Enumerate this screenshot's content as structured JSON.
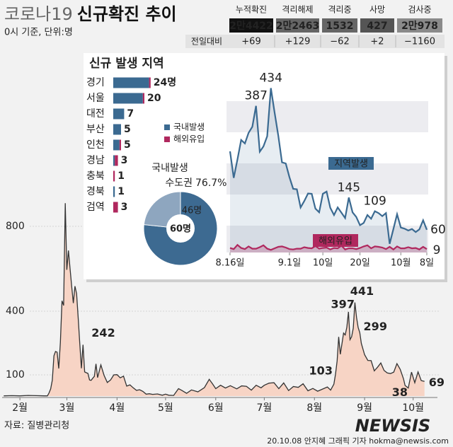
{
  "header": {
    "title_gray": "코로나19",
    "title": "신규확진 추이",
    "subtitle": "0시 기준, 단위:명"
  },
  "stats": {
    "columns": [
      "누적확진",
      "격리해제",
      "격리중",
      "사망",
      "검사중"
    ],
    "totals": [
      "2만4422",
      "2만2463",
      "1532",
      "427",
      "2만978"
    ],
    "change_label": "전일대비",
    "changes": [
      "+69",
      "+129",
      "−62",
      "+2",
      "−1160"
    ]
  },
  "chart_data": [
    {
      "type": "area",
      "x": [
        -10,
        -5,
        0,
        5,
        10,
        15,
        17,
        18,
        19,
        20,
        21,
        22,
        23,
        24,
        25,
        26,
        27,
        28,
        29,
        30,
        31,
        32,
        33,
        34,
        35,
        36,
        37,
        38,
        39,
        40,
        41,
        42,
        43,
        44,
        45,
        46,
        47,
        48,
        50,
        52,
        54,
        56,
        58,
        60,
        62,
        64,
        66,
        68,
        70,
        72,
        74,
        76,
        78,
        80,
        82,
        85,
        88,
        90,
        92,
        95,
        98,
        100,
        103,
        106,
        110,
        114,
        117,
        119,
        121,
        124,
        127,
        130,
        134,
        137,
        140,
        143,
        146,
        149,
        151,
        154,
        157,
        160,
        163,
        166,
        169,
        172,
        175,
        178,
        181,
        184,
        187,
        190,
        192,
        194,
        195,
        196,
        197,
        198,
        199,
        200,
        201,
        202,
        203,
        204,
        205,
        206,
        207,
        208,
        209,
        210,
        211,
        213,
        215,
        217,
        219,
        221,
        223,
        225,
        227,
        229,
        231,
        233,
        235,
        237,
        238,
        240,
        242,
        244,
        246,
        248,
        250
      ],
      "series": [
        {
          "color": "#333333",
          "fill": "#f7d4c5",
          "values": [
            1,
            2,
            1,
            3,
            2,
            1,
            1,
            15,
            34,
            75,
            190,
            210,
            207,
            130,
            253,
            449,
            427,
            909,
            595,
            686,
            600,
            516,
            438,
            518,
            483,
            367,
            248,
            131,
            242,
            114,
            110,
            107,
            76,
            74,
            84,
            93,
            152,
            87,
            147,
            98,
            64,
            76,
            100,
            101,
            86,
            94,
            47,
            53,
            39,
            27,
            30,
            22,
            9,
            11,
            8,
            10,
            4,
            9,
            4,
            3,
            35,
            27,
            13,
            29,
            20,
            40,
            79,
            58,
            35,
            51,
            38,
            49,
            34,
            48,
            46,
            28,
            51,
            39,
            51,
            61,
            63,
            35,
            62,
            26,
            45,
            41,
            58,
            25,
            36,
            23,
            33,
            43,
            28,
            56,
            103,
            166,
            279,
            197,
            246,
            297,
            288,
            324,
            397,
            266,
            280,
            320,
            441,
            371,
            323,
            299,
            248,
            195,
            168,
            167,
            119,
            136,
            156,
            121,
            109,
            106,
            113,
            153,
            126,
            82,
            50,
            38,
            113,
            63,
            114,
            73,
            69
          ]
        }
      ],
      "xlim": [
        -11,
        258
      ],
      "ylim": [
        0,
        950
      ],
      "xticks": [
        {
          "value": 0,
          "label": "2월"
        },
        {
          "value": 29,
          "label": "3월"
        },
        {
          "value": 60,
          "label": "4월"
        },
        {
          "value": 90,
          "label": "5월"
        },
        {
          "value": 121,
          "label": "6월"
        },
        {
          "value": 151,
          "label": "7월"
        },
        {
          "value": 182,
          "label": "8월"
        },
        {
          "value": 213,
          "label": "9월"
        },
        {
          "value": 243,
          "label": "10월"
        }
      ],
      "yticks": [
        100,
        400,
        800
      ],
      "grid": true
    },
    {
      "type": "stacked-bar",
      "title": "신규 발생 지역",
      "categories": [
        "경기",
        "서울",
        "대전",
        "부산",
        "인천",
        "경남",
        "충북",
        "경북",
        "검역"
      ],
      "series": [
        {
          "name": "국내발생",
          "color": "#3b6a91",
          "values": [
            23,
            19,
            7,
            5,
            4,
            1,
            0,
            1,
            0
          ]
        },
        {
          "name": "해외유입",
          "color": "#b0285e",
          "values": [
            1,
            1,
            0,
            0,
            1,
            2,
            1,
            0,
            3
          ]
        }
      ],
      "value_labels": [
        "24명",
        "20",
        "7",
        "5",
        "5",
        "3",
        "1",
        "1",
        "3"
      ]
    },
    {
      "type": "pie",
      "title": "국내발생",
      "categories": [
        "수도권",
        null
      ],
      "values": [
        46,
        14
      ],
      "value_labels": [
        "46명",
        null
      ],
      "colors": [
        "#3d6a91",
        "#8ea6bf"
      ],
      "share_label": "76.7%",
      "total": 60,
      "total_label": "60명"
    },
    {
      "type": "line",
      "x": [
        0,
        1,
        2,
        3,
        4,
        5,
        6,
        7,
        8,
        9,
        10,
        11,
        12,
        13,
        14,
        15,
        16,
        17,
        18,
        19,
        20,
        21,
        22,
        23,
        24,
        25,
        26,
        27,
        28,
        29,
        30,
        31,
        32,
        33,
        34,
        35,
        36,
        37,
        38,
        39,
        40,
        41,
        42,
        43,
        44,
        45,
        46,
        47,
        48,
        49,
        50,
        51,
        52,
        53
      ],
      "series": [
        {
          "name": "지역발생",
          "color": "#3b6a91",
          "values": [
            267,
            197,
            246,
            297,
            288,
            316,
            332,
            387,
            266,
            280,
            307,
            434,
            370,
            308,
            238,
            235,
            199,
            168,
            167,
            119,
            136,
            156,
            155,
            116,
            106,
            155,
            161,
            118,
            99,
            119,
            105,
            91,
            145,
            106,
            94,
            72,
            78,
            99,
            89,
            109,
            104,
            96,
            104,
            23,
            62,
            101,
            66,
            63,
            58,
            62,
            54,
            61,
            85,
            60
          ]
        },
        {
          "name": "해외유입",
          "color": "#b0285e",
          "values": [
            12,
            9,
            20,
            12,
            9,
            16,
            10,
            10,
            14,
            19,
            10,
            7,
            11,
            15,
            16,
            13,
            9,
            8,
            10,
            10,
            14,
            12,
            11,
            17,
            10,
            12,
            13,
            8,
            12,
            11,
            18,
            8,
            11,
            11,
            9,
            12,
            16,
            19,
            11,
            16,
            15,
            13,
            9,
            15,
            8,
            16,
            11,
            11,
            14,
            11,
            12,
            8,
            15,
            9
          ]
        }
      ],
      "xlim": [
        0,
        53
      ],
      "ylim": [
        0,
        450
      ],
      "xticks": [
        {
          "value": 0,
          "label": "8.16일"
        },
        {
          "value": 16,
          "label": "9.1일"
        },
        {
          "value": 25,
          "label": "10일"
        },
        {
          "value": 35,
          "label": "20일"
        },
        {
          "value": 46,
          "label": "10월"
        },
        {
          "value": 53,
          "label": "8일"
        }
      ]
    }
  ],
  "footer": {
    "source": "자료: 질병관리청",
    "logo": "NEWSIS",
    "credit": "20.10.08 안지혜 그래픽 기자 hokma@newsis.com"
  }
}
